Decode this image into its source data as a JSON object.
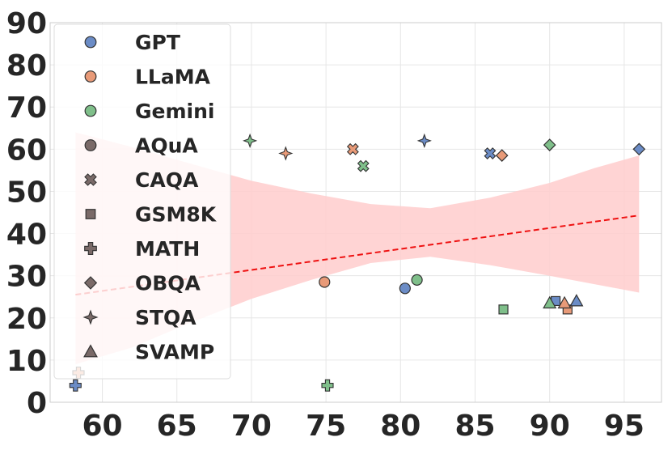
{
  "chart_data": {
    "type": "scatter",
    "title": "",
    "xlabel": "",
    "ylabel": "",
    "xlim": [
      56.5,
      97.5
    ],
    "ylim": [
      0,
      90
    ],
    "xticks": [
      60,
      65,
      70,
      75,
      80,
      85,
      90,
      95
    ],
    "yticks": [
      0,
      10,
      20,
      30,
      40,
      50,
      60,
      70,
      80,
      90
    ],
    "grid": true,
    "legend_position": "upper-left",
    "colors": {
      "GPT": "#6b8cc6",
      "LLaMA": "#e89a78",
      "Gemini": "#7fbf8a",
      "neutral": "#7a6a68",
      "trend": "#ee1111",
      "band": "#ffcccc"
    },
    "legend": {
      "models": [
        "GPT",
        "LLaMA",
        "Gemini"
      ],
      "datasets": [
        {
          "name": "AQuA",
          "marker": "circle"
        },
        {
          "name": "CAQA",
          "marker": "x"
        },
        {
          "name": "GSM8K",
          "marker": "square"
        },
        {
          "name": "MATH",
          "marker": "plus"
        },
        {
          "name": "OBQA",
          "marker": "diamond"
        },
        {
          "name": "STQA",
          "marker": "star4"
        },
        {
          "name": "SVAMP",
          "marker": "triangle"
        }
      ]
    },
    "points": [
      {
        "model": "GPT",
        "dataset": "AQuA",
        "x": 80.3,
        "y": 27
      },
      {
        "model": "LLaMA",
        "dataset": "AQuA",
        "x": 74.9,
        "y": 28.5
      },
      {
        "model": "Gemini",
        "dataset": "AQuA",
        "x": 81.1,
        "y": 29
      },
      {
        "model": "GPT",
        "dataset": "CAQA",
        "x": 86.0,
        "y": 59
      },
      {
        "model": "LLaMA",
        "dataset": "CAQA",
        "x": 76.8,
        "y": 60
      },
      {
        "model": "Gemini",
        "dataset": "CAQA",
        "x": 77.5,
        "y": 56
      },
      {
        "model": "GPT",
        "dataset": "GSM8K",
        "x": 90.4,
        "y": 24
      },
      {
        "model": "LLaMA",
        "dataset": "GSM8K",
        "x": 91.2,
        "y": 22
      },
      {
        "model": "Gemini",
        "dataset": "GSM8K",
        "x": 86.9,
        "y": 22
      },
      {
        "model": "GPT",
        "dataset": "MATH",
        "x": 58.2,
        "y": 4
      },
      {
        "model": "LLaMA",
        "dataset": "MATH",
        "x": 58.4,
        "y": 7
      },
      {
        "model": "Gemini",
        "dataset": "MATH",
        "x": 75.1,
        "y": 4
      },
      {
        "model": "GPT",
        "dataset": "OBQA",
        "x": 96.0,
        "y": 60
      },
      {
        "model": "LLaMA",
        "dataset": "OBQA",
        "x": 86.8,
        "y": 58.5
      },
      {
        "model": "Gemini",
        "dataset": "OBQA",
        "x": 90.0,
        "y": 61
      },
      {
        "model": "GPT",
        "dataset": "STQA",
        "x": 81.6,
        "y": 62
      },
      {
        "model": "LLaMA",
        "dataset": "STQA",
        "x": 72.3,
        "y": 59
      },
      {
        "model": "Gemini",
        "dataset": "STQA",
        "x": 69.9,
        "y": 62
      },
      {
        "model": "GPT",
        "dataset": "SVAMP",
        "x": 91.8,
        "y": 24
      },
      {
        "model": "LLaMA",
        "dataset": "SVAMP",
        "x": 91.0,
        "y": 23.5
      },
      {
        "model": "Gemini",
        "dataset": "SVAMP",
        "x": 90.0,
        "y": 23.5
      }
    ],
    "trend": {
      "style": "dashed",
      "x": [
        58.2,
        96.0
      ],
      "y": [
        25.5,
        44.3
      ]
    },
    "confidence_band": {
      "x": [
        58.2,
        62,
        66,
        70,
        74,
        78,
        82,
        86,
        90,
        93,
        96.0
      ],
      "upper": [
        64,
        60.5,
        56.5,
        52.5,
        49.5,
        47,
        46,
        48.5,
        52,
        55.5,
        58.5
      ],
      "lower": [
        9,
        13,
        19,
        24.5,
        29,
        33,
        34.5,
        32.5,
        30,
        28,
        26
      ]
    }
  }
}
